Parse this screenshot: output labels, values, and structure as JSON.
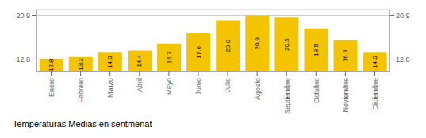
{
  "chart_data": {
    "type": "bar",
    "title": "Temperaturas Medias en sentmenat",
    "categories": [
      "Enero",
      "Febrero",
      "Marzo",
      "Abril",
      "Mayo",
      "Junio",
      "Julio",
      "Agosto",
      "Septiembre",
      "Octubre",
      "Noviembre",
      "Diciembre"
    ],
    "values": [
      12.8,
      13.2,
      14.0,
      14.4,
      15.7,
      17.6,
      20.0,
      20.9,
      20.5,
      18.5,
      16.3,
      14.0
    ],
    "value_labels": [
      "12.8",
      "13.2",
      "14.0",
      "14.4",
      "15.7",
      "17.6",
      "20.0",
      "20.9",
      "20.5",
      "18.5",
      "16.3",
      "14.0"
    ],
    "color": "#F5C400",
    "ylim": [
      10.5,
      22.0
    ],
    "yticks": [
      12.8,
      20.9
    ],
    "y2lim": [
      10.5,
      22.0
    ],
    "y2ticks": [
      12.8,
      20.9
    ],
    "grid": true,
    "data_labels": true
  }
}
